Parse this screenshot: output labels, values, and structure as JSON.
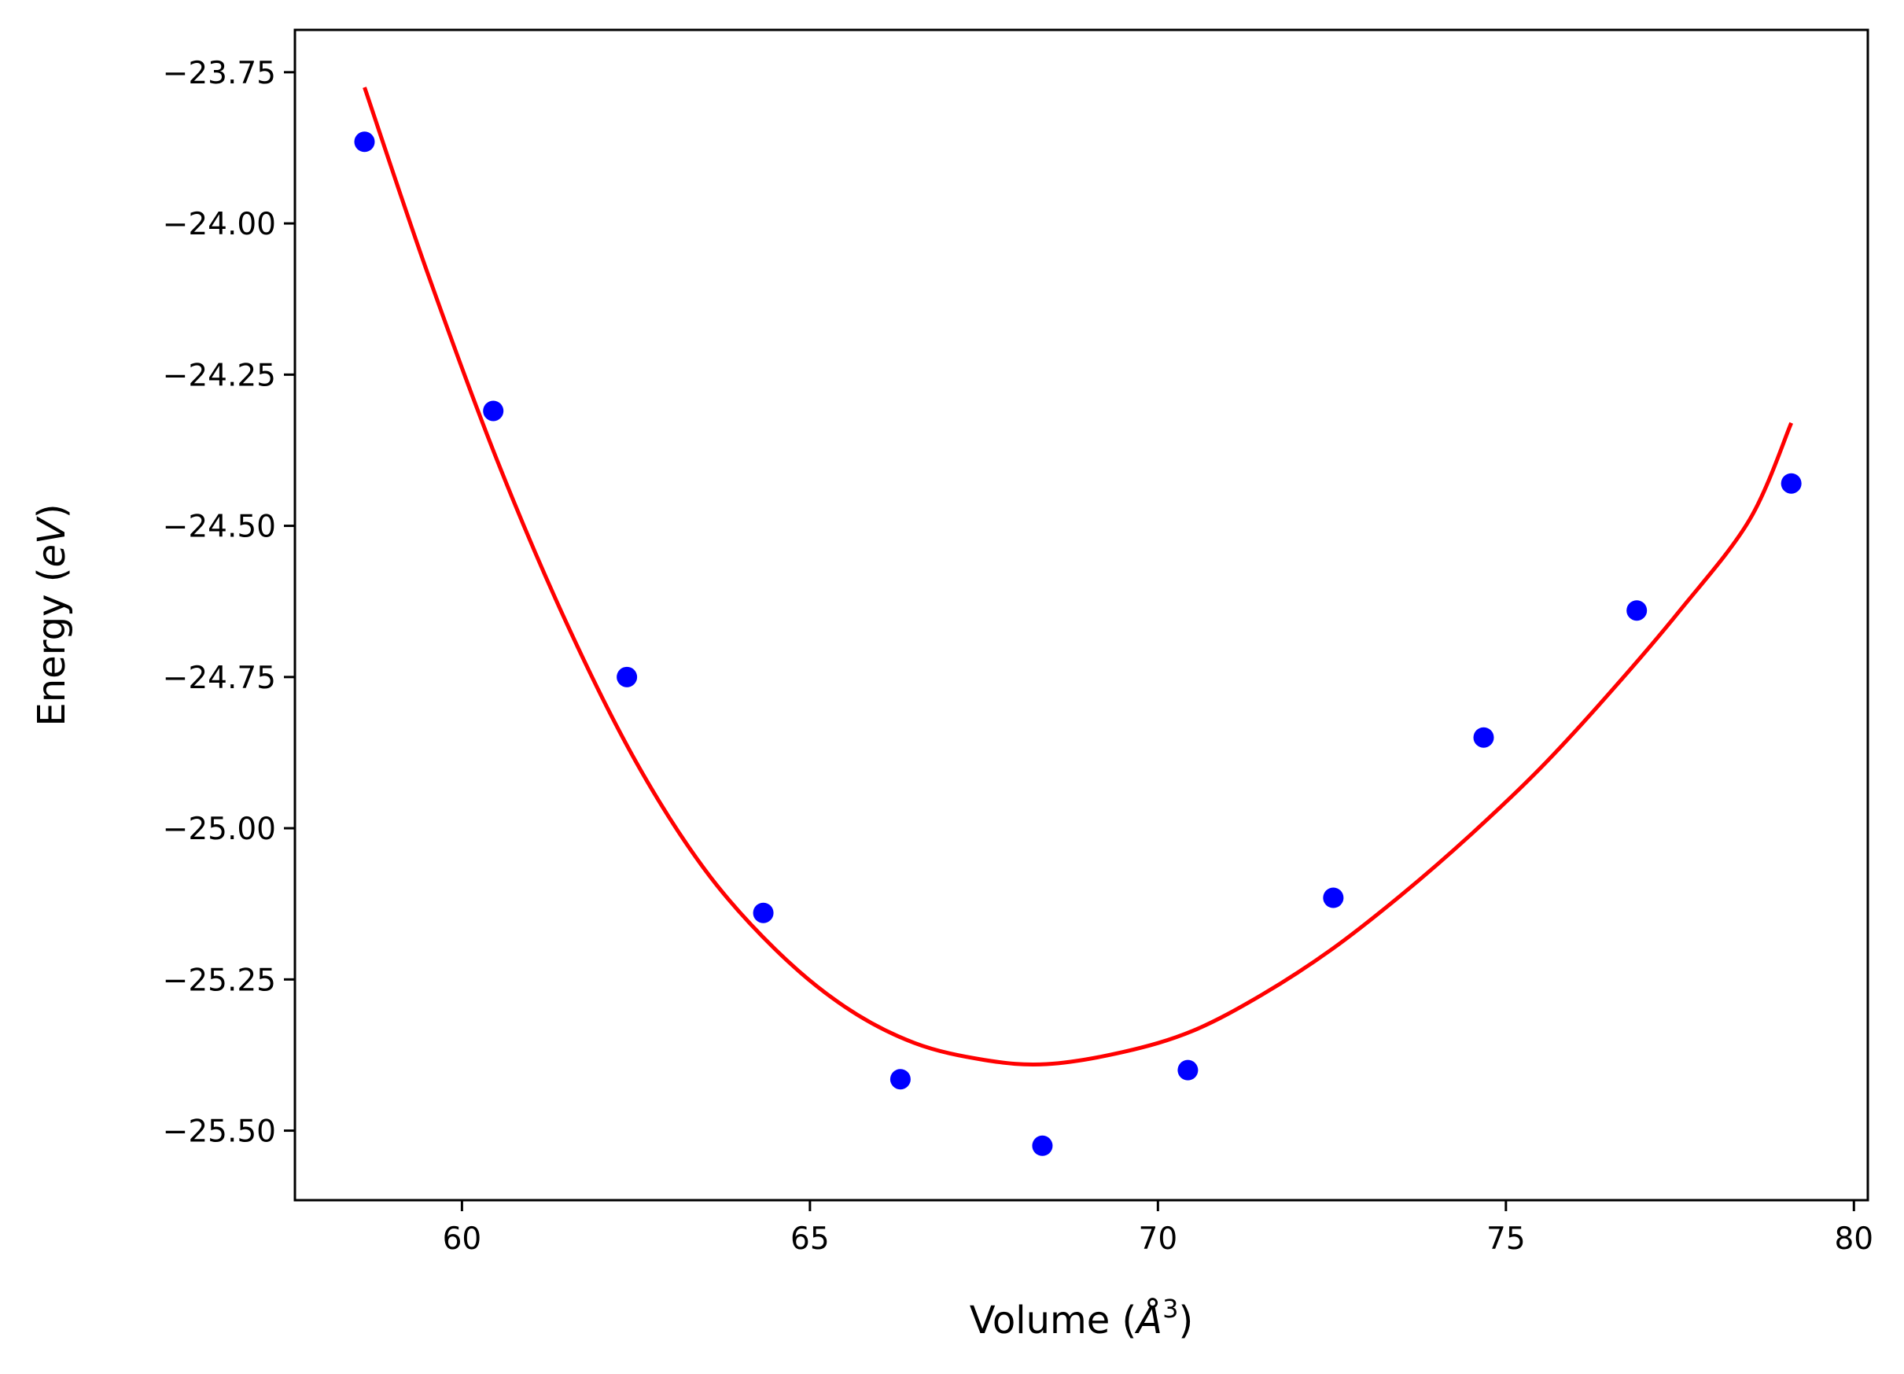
{
  "chart_data": {
    "type": "scatter",
    "title": "",
    "xlabel": {
      "prefix": "Volume (",
      "italic": "Å",
      "sup": "3",
      "suffix": ")"
    },
    "ylabel": {
      "prefix": "Energy (",
      "italic": "eV",
      "suffix": ")"
    },
    "xlim": [
      57.6,
      80.2
    ],
    "ylim": [
      -25.615,
      -23.68
    ],
    "grid": false,
    "legend": "none",
    "x_ticks": [
      {
        "value": 60,
        "label": "60"
      },
      {
        "value": 65,
        "label": "65"
      },
      {
        "value": 70,
        "label": "70"
      },
      {
        "value": 75,
        "label": "75"
      },
      {
        "value": 80,
        "label": "80"
      }
    ],
    "y_ticks": [
      {
        "value": -23.75,
        "label": "−23.75"
      },
      {
        "value": -24.0,
        "label": "−24.00"
      },
      {
        "value": -24.25,
        "label": "−24.25"
      },
      {
        "value": -24.5,
        "label": "−24.50"
      },
      {
        "value": -24.75,
        "label": "−24.75"
      },
      {
        "value": -25.0,
        "label": "−25.00"
      },
      {
        "value": -25.25,
        "label": "−25.25"
      },
      {
        "value": -25.5,
        "label": "−25.50"
      }
    ],
    "series": [
      {
        "kind": "scatter",
        "color": "#0000ff",
        "points": [
          {
            "x": 58.6,
            "y": -23.865
          },
          {
            "x": 60.45,
            "y": -24.31
          },
          {
            "x": 62.37,
            "y": -24.75
          },
          {
            "x": 64.33,
            "y": -25.14
          },
          {
            "x": 66.3,
            "y": -25.415
          },
          {
            "x": 68.34,
            "y": -25.525
          },
          {
            "x": 70.43,
            "y": -25.4
          },
          {
            "x": 72.52,
            "y": -25.115
          },
          {
            "x": 74.68,
            "y": -24.85
          },
          {
            "x": 76.88,
            "y": -24.64
          },
          {
            "x": 79.1,
            "y": -24.43
          }
        ]
      },
      {
        "kind": "line",
        "color": "#ff0000",
        "points": [
          {
            "x": 58.6,
            "y": -23.775
          },
          {
            "x": 59.5,
            "y": -24.08
          },
          {
            "x": 60.5,
            "y": -24.39
          },
          {
            "x": 61.5,
            "y": -24.66
          },
          {
            "x": 62.5,
            "y": -24.89
          },
          {
            "x": 63.5,
            "y": -25.07
          },
          {
            "x": 64.5,
            "y": -25.2
          },
          {
            "x": 65.5,
            "y": -25.295
          },
          {
            "x": 66.5,
            "y": -25.355
          },
          {
            "x": 67.5,
            "y": -25.383
          },
          {
            "x": 68.4,
            "y": -25.39
          },
          {
            "x": 69.5,
            "y": -25.37
          },
          {
            "x": 70.5,
            "y": -25.335
          },
          {
            "x": 71.5,
            "y": -25.275
          },
          {
            "x": 72.5,
            "y": -25.2
          },
          {
            "x": 73.5,
            "y": -25.11
          },
          {
            "x": 74.5,
            "y": -25.01
          },
          {
            "x": 75.5,
            "y": -24.9
          },
          {
            "x": 76.5,
            "y": -24.775
          },
          {
            "x": 77.5,
            "y": -24.64
          },
          {
            "x": 78.5,
            "y": -24.49
          },
          {
            "x": 79.1,
            "y": -24.33
          }
        ]
      }
    ]
  }
}
